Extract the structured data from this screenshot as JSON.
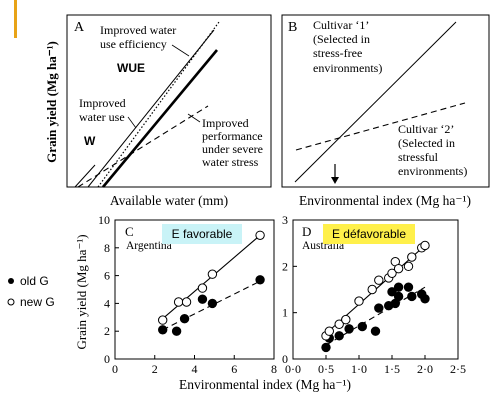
{
  "accent_bar_color": "#e8a317",
  "legend": {
    "old_label": "old G",
    "new_label": "new G",
    "old_symbol": "filled-circle",
    "new_symbol": "open-circle"
  },
  "top_y_label": "Grain yield (Mg ha⁻¹)",
  "panel_A": {
    "letter": "A",
    "xlabel": "Available water (mm)",
    "text_water_use_efficiency_1": "Improved water",
    "text_water_use_efficiency_2": "use efficiency",
    "text_wue": "WUE",
    "text_water_use_1": "Improved",
    "text_water_use_2": "water use",
    "text_w": "W",
    "text_stress_1": "Improved",
    "text_stress_2": "performance",
    "text_stress_3": "under severe",
    "text_stress_4": "water stress"
  },
  "panel_B": {
    "letter": "B",
    "xlabel": "Environmental index (Mg ha⁻¹)",
    "cultivar1_1": "Cultivar ‘1’",
    "cultivar1_2": "(Selected in",
    "cultivar1_3": "stress-free",
    "cultivar1_4": "environments)",
    "cultivar2_1": "Cultivar ‘2’",
    "cultivar2_2": "(Selected in",
    "cultivar2_3": "stressful",
    "cultivar2_4": "environments)"
  },
  "bottom_y_label": "Grain yield (Mg ha⁻¹)",
  "bottom_x_label": "Environmental index (Mg ha⁻¹)",
  "chart_data": [
    {
      "type": "scatter",
      "panel": "C",
      "region": "Argentina",
      "badge": "E favorable",
      "badge_color": "#c9f3f7",
      "xlim": [
        0,
        8
      ],
      "ylim": [
        0,
        10
      ],
      "x_ticks": [
        "0",
        "2",
        "4",
        "6",
        "8"
      ],
      "y_ticks": [
        "0",
        "2",
        "4",
        "6",
        "8",
        "10"
      ],
      "series": [
        {
          "name": "old G",
          "marker": "filled",
          "points": [
            [
              2.4,
              2.1
            ],
            [
              3.1,
              2.0
            ],
            [
              3.5,
              2.9
            ],
            [
              4.4,
              4.3
            ],
            [
              4.9,
              4.0
            ],
            [
              7.3,
              5.7
            ]
          ],
          "fit": [
            [
              2.4,
              2.1
            ],
            [
              7.3,
              5.6
            ]
          ]
        },
        {
          "name": "new G",
          "marker": "open",
          "points": [
            [
              2.4,
              2.8
            ],
            [
              3.2,
              4.1
            ],
            [
              3.6,
              4.1
            ],
            [
              4.4,
              5.1
            ],
            [
              4.9,
              6.1
            ],
            [
              7.3,
              8.9
            ]
          ],
          "fit": [
            [
              2.4,
              2.9
            ],
            [
              7.3,
              8.9
            ]
          ]
        }
      ]
    },
    {
      "type": "scatter",
      "panel": "D",
      "region": "Australia",
      "badge": "E défavorable",
      "badge_color": "#fff04a",
      "xlim": [
        0,
        2.5
      ],
      "ylim": [
        0,
        3
      ],
      "x_ticks": [
        "0·0",
        "0·5",
        "1·0",
        "1·5",
        "2·0",
        "2·5"
      ],
      "y_ticks": [
        "0",
        "1",
        "2",
        "3"
      ],
      "series": [
        {
          "name": "old G",
          "marker": "filled",
          "points": [
            [
              0.5,
              0.25
            ],
            [
              0.55,
              0.45
            ],
            [
              0.7,
              0.5
            ],
            [
              0.85,
              0.65
            ],
            [
              1.05,
              0.7
            ],
            [
              1.25,
              0.6
            ],
            [
              1.3,
              1.1
            ],
            [
              1.45,
              1.15
            ],
            [
              1.5,
              1.45
            ],
            [
              1.55,
              1.2
            ],
            [
              1.6,
              1.55
            ],
            [
              1.6,
              1.35
            ],
            [
              1.75,
              1.55
            ],
            [
              1.8,
              1.35
            ],
            [
              1.95,
              1.4
            ],
            [
              2.0,
              1.3
            ]
          ],
          "fit": [
            [
              0.5,
              0.3
            ],
            [
              2.0,
              1.55
            ]
          ]
        },
        {
          "name": "new G",
          "marker": "open",
          "points": [
            [
              0.5,
              0.5
            ],
            [
              0.55,
              0.6
            ],
            [
              0.7,
              0.75
            ],
            [
              0.8,
              0.85
            ],
            [
              1.0,
              1.25
            ],
            [
              1.2,
              1.5
            ],
            [
              1.3,
              1.7
            ],
            [
              1.45,
              1.75
            ],
            [
              1.5,
              1.85
            ],
            [
              1.55,
              2.1
            ],
            [
              1.6,
              1.95
            ],
            [
              1.75,
              2.0
            ],
            [
              1.8,
              2.2
            ],
            [
              1.95,
              2.4
            ],
            [
              2.0,
              2.45
            ]
          ],
          "fit": [
            [
              0.5,
              0.55
            ],
            [
              2.0,
              2.45
            ]
          ]
        }
      ]
    }
  ]
}
